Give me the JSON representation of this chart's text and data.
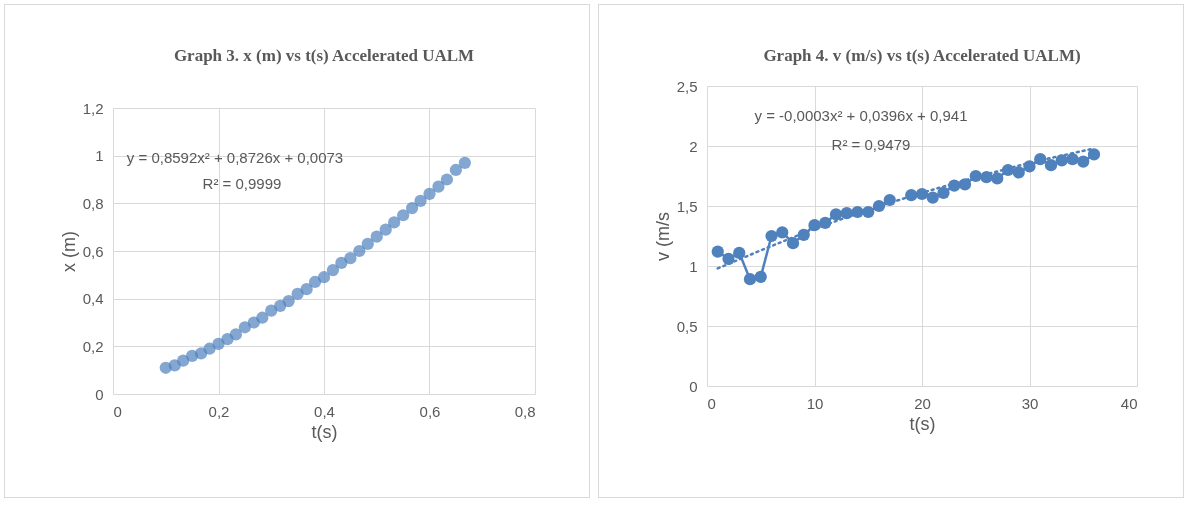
{
  "chart_data": [
    {
      "type": "scatter",
      "title": "Graph 3. x (m) vs t(s) Accelerated UALM",
      "xlabel": "t(s)",
      "ylabel": "x (m)",
      "x": [
        0.1,
        0.117,
        0.133,
        0.15,
        0.167,
        0.183,
        0.2,
        0.217,
        0.233,
        0.25,
        0.267,
        0.283,
        0.3,
        0.317,
        0.333,
        0.35,
        0.367,
        0.383,
        0.4,
        0.417,
        0.433,
        0.45,
        0.467,
        0.483,
        0.5,
        0.517,
        0.533,
        0.55,
        0.567,
        0.583,
        0.6,
        0.617,
        0.633,
        0.65,
        0.667
      ],
      "series": [
        {
          "color": "#4f81bd",
          "values": [
            0.11,
            0.12,
            0.14,
            0.16,
            0.17,
            0.19,
            0.21,
            0.23,
            0.25,
            0.28,
            0.3,
            0.32,
            0.35,
            0.37,
            0.39,
            0.42,
            0.44,
            0.47,
            0.49,
            0.52,
            0.55,
            0.57,
            0.6,
            0.63,
            0.66,
            0.69,
            0.72,
            0.75,
            0.78,
            0.81,
            0.84,
            0.87,
            0.9,
            0.94,
            0.97
          ]
        }
      ],
      "xlim": [
        0,
        0.8
      ],
      "xticks": [
        0,
        {
          "value": 0.2,
          "label": "0,2"
        },
        {
          "value": 0.4,
          "label": "0,4"
        },
        {
          "value": 0.6,
          "label": "0,6"
        },
        {
          "value": 0.8,
          "label": "0,8"
        }
      ],
      "ylim": [
        0,
        1.2
      ],
      "yticks": [
        0,
        {
          "value": 0.2,
          "label": "0,2"
        },
        {
          "value": 0.4,
          "label": "0,4"
        },
        {
          "value": 0.6,
          "label": "0,6"
        },
        {
          "value": 0.8,
          "label": "0,8"
        },
        1,
        {
          "value": 1.2,
          "label": "1,2"
        }
      ],
      "grid": true,
      "marker": "circle",
      "line_style": "solid",
      "annotations": [
        "y = 0,8592x² + 0,8726x + 0,0073",
        "R² = 0,9999"
      ]
    },
    {
      "type": "line",
      "title": "Graph 4. v (m/s) vs t(s) Accelerated UALM)",
      "xlabel": "t(s)",
      "ylabel": "v (m/s",
      "x": [
        1,
        2,
        3,
        4,
        5,
        6,
        7,
        8,
        9,
        10,
        11,
        12,
        13,
        14,
        15,
        16,
        17,
        18,
        19,
        20,
        21,
        22,
        23,
        24,
        25,
        26,
        27,
        28,
        29,
        30,
        31,
        32,
        33,
        34,
        35,
        36
      ],
      "series": [
        {
          "color": "#4f81bd",
          "values": [
            1.12,
            1.06,
            1.11,
            0.89,
            0.91,
            1.25,
            1.28,
            1.19,
            1.26,
            1.34,
            1.36,
            1.43,
            1.44,
            1.45,
            1.45,
            1.5,
            1.55,
            null,
            1.59,
            1.6,
            1.57,
            1.61,
            1.67,
            1.68,
            1.75,
            1.74,
            1.73,
            1.8,
            1.78,
            1.83,
            1.89,
            1.84,
            1.88,
            1.89,
            1.87,
            1.93
          ]
        },
        {
          "type": "line",
          "color": "#4f81bd",
          "marker": "none",
          "line_style": "dotted",
          "x": [
            1,
            5,
            10,
            15,
            20,
            25,
            30,
            36
          ],
          "values": [
            0.98,
            1.13,
            1.31,
            1.47,
            1.61,
            1.74,
            1.86,
            1.98
          ]
        }
      ],
      "xlim": [
        0,
        40
      ],
      "xticks": [
        0,
        10,
        20,
        30,
        40
      ],
      "ylim": [
        0,
        2.5
      ],
      "yticks": [
        0,
        {
          "value": 0.5,
          "label": "0,5"
        },
        1,
        {
          "value": 1.5,
          "label": "1,5"
        },
        2,
        {
          "value": 2.5,
          "label": "2,5"
        }
      ],
      "grid": true,
      "marker": "circle",
      "line_style": "solid",
      "annotations": [
        "y = -0,0003x² + 0,0396x + 0,941",
        "R² = 0,9479"
      ]
    }
  ]
}
